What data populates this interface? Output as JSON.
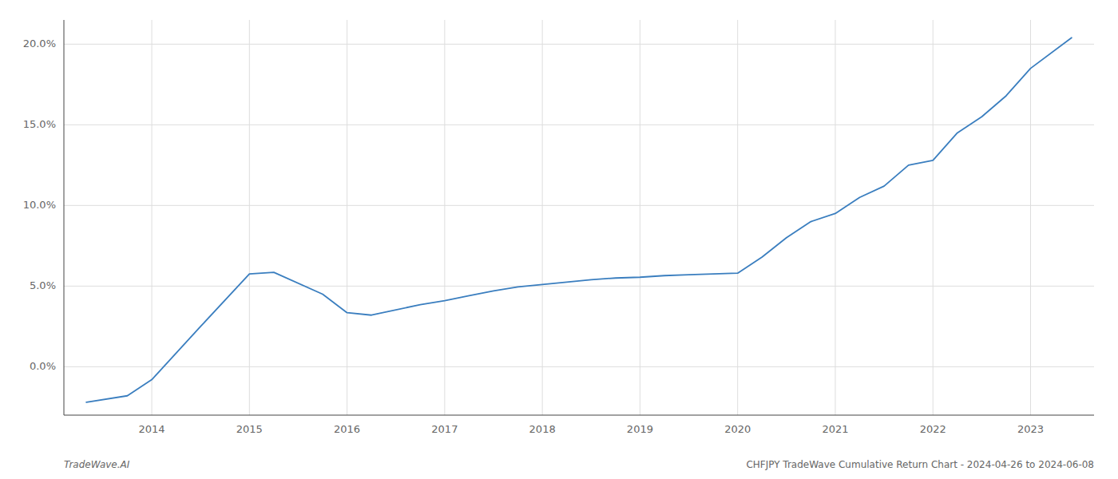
{
  "chart_data": {
    "type": "line",
    "x": [
      2013.33,
      2013.75,
      2014.0,
      2014.5,
      2015.0,
      2015.25,
      2015.75,
      2016.0,
      2016.25,
      2016.75,
      2017.0,
      2017.25,
      2017.5,
      2017.75,
      2018.0,
      2018.25,
      2018.5,
      2018.75,
      2019.0,
      2019.25,
      2019.5,
      2019.75,
      2020.0,
      2020.25,
      2020.5,
      2020.75,
      2021.0,
      2021.25,
      2021.5,
      2021.75,
      2022.0,
      2022.25,
      2022.5,
      2022.75,
      2023.0,
      2023.42
    ],
    "values": [
      -2.2,
      -1.8,
      -0.8,
      2.5,
      5.75,
      5.85,
      4.5,
      3.35,
      3.2,
      3.85,
      4.1,
      4.4,
      4.7,
      4.95,
      5.1,
      5.25,
      5.4,
      5.5,
      5.55,
      5.65,
      5.7,
      5.75,
      5.8,
      6.8,
      8.0,
      9.0,
      9.5,
      10.5,
      11.2,
      12.5,
      12.8,
      14.5,
      15.5,
      16.8,
      18.5,
      20.4
    ],
    "color": "#3a7ebf",
    "xlim": [
      2013.1,
      2023.65
    ],
    "ylim": [
      -3.0,
      21.5
    ],
    "xticks": [
      2014,
      2015,
      2016,
      2017,
      2018,
      2019,
      2020,
      2021,
      2022,
      2023
    ],
    "yticks": [
      {
        "value": 0.0,
        "label": "0.0%"
      },
      {
        "value": 5.0,
        "label": "5.0%"
      },
      {
        "value": 10.0,
        "label": "10.0%"
      },
      {
        "value": 15.0,
        "label": "15.0%"
      },
      {
        "value": 20.0,
        "label": "20.0%"
      }
    ],
    "grid": true,
    "annotations": [
      "TradeWave.AI",
      "CHFJPY TradeWave Cumulative Return Chart - 2024-04-26 to 2024-06-08"
    ]
  }
}
